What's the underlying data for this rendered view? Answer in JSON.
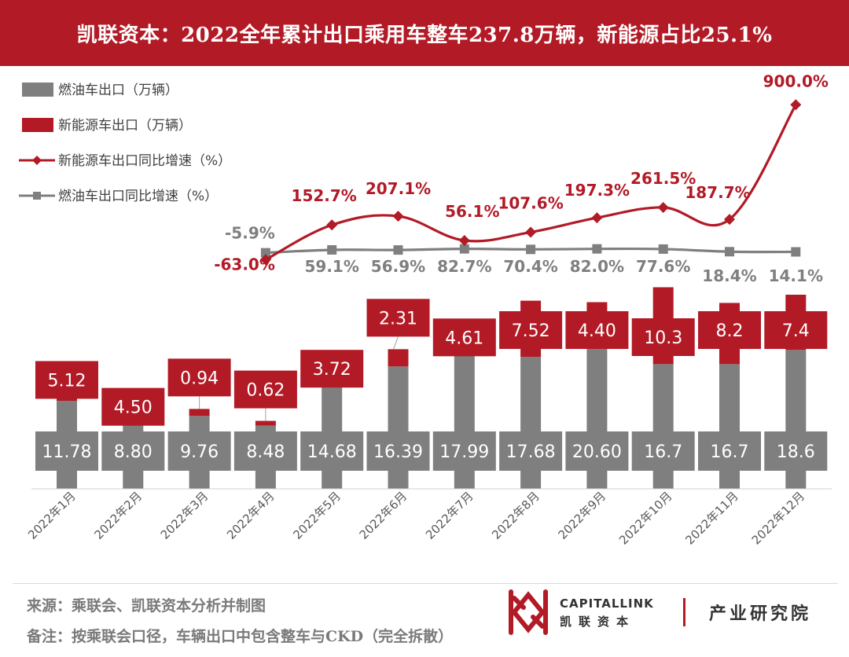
{
  "title": "凯联资本：2022全年累计出口乘用车整车237.8万辆，新能源占比25.1%",
  "colors": {
    "red": "#b21a26",
    "gray": "#7f7f7f",
    "label_red": "#b21a26",
    "label_gray": "#7f7f7f"
  },
  "chart_data": {
    "type": "bar",
    "stacked": true,
    "categories": [
      "2022年1月",
      "2022年2月",
      "2022年3月",
      "2022年4月",
      "2022年5月",
      "2022年6月",
      "2022年7月",
      "2022年8月",
      "2022年9月",
      "2022年10月",
      "2022年11月",
      "2022年12月"
    ],
    "legend": {
      "placement": "top-left",
      "entries": [
        {
          "label": "燃油车出口（万辆）",
          "kind": "bar",
          "color": "#7f7f7f"
        },
        {
          "label": "新能源车出口（万辆）",
          "kind": "bar",
          "color": "#b21a26"
        },
        {
          "label": "新能源车出口同比增速（%）",
          "kind": "line",
          "color": "#b21a26"
        },
        {
          "label": "燃油车出口同比增速（%）",
          "kind": "line",
          "color": "#7f7f7f"
        }
      ]
    },
    "bar_series": [
      {
        "name": "燃油车出口（万辆）",
        "color": "#7f7f7f",
        "values": [
          11.78,
          8.8,
          9.76,
          8.48,
          14.68,
          16.39,
          17.99,
          17.68,
          20.6,
          16.7,
          16.7,
          18.6
        ],
        "labels": [
          "11.78",
          "8.80",
          "9.76",
          "8.48",
          "14.68",
          "16.39",
          "17.99",
          "17.68",
          "20.60",
          "16.7",
          "16.7",
          "18.6"
        ]
      },
      {
        "name": "新能源车出口（万辆）",
        "color": "#b21a26",
        "values": [
          5.12,
          4.5,
          0.94,
          0.62,
          3.72,
          2.31,
          4.61,
          7.52,
          4.4,
          10.3,
          8.2,
          7.4
        ],
        "labels": [
          "5.12",
          "4.50",
          "0.94",
          "0.62",
          "3.72",
          "2.31",
          "4.61",
          "7.52",
          "4.40",
          "10.3",
          "8.2",
          "7.4"
        ]
      }
    ],
    "line_series": [
      {
        "name": "新能源车出口同比增速（%）",
        "color": "#b21a26",
        "marker": "diamond",
        "values": [
          -63.0,
          152.7,
          207.1,
          56.1,
          107.6,
          197.3,
          261.5,
          187.7,
          900.0
        ],
        "start_index": 3,
        "labels": [
          "-63.0%",
          "152.7%",
          "207.1%",
          "56.1%",
          "107.6%",
          "197.3%",
          "261.5%",
          "187.7%",
          "900.0%"
        ]
      },
      {
        "name": "燃油车出口同比增速（%）",
        "color": "#7f7f7f",
        "marker": "square",
        "values": [
          -5.9,
          59.1,
          56.9,
          82.7,
          70.4,
          82.0,
          77.6,
          18.4,
          14.1
        ],
        "start_index": 3,
        "labels": [
          "-5.9%",
          "59.1%",
          "56.9%",
          "82.7%",
          "70.4%",
          "82.0%",
          "77.6%",
          "18.4%",
          "14.1%"
        ]
      }
    ],
    "xlabel": "",
    "ylabel": "",
    "grid": false
  },
  "footer": {
    "source": "来源：乘联会、凯联资本分析并制图",
    "note": "备注：按乘联会口径，车辆出口中包含整车与CKD（完全拆散）",
    "logo_en": "CAPITALLINK",
    "logo_cn": "凯联资本",
    "department": "产业研究院"
  }
}
